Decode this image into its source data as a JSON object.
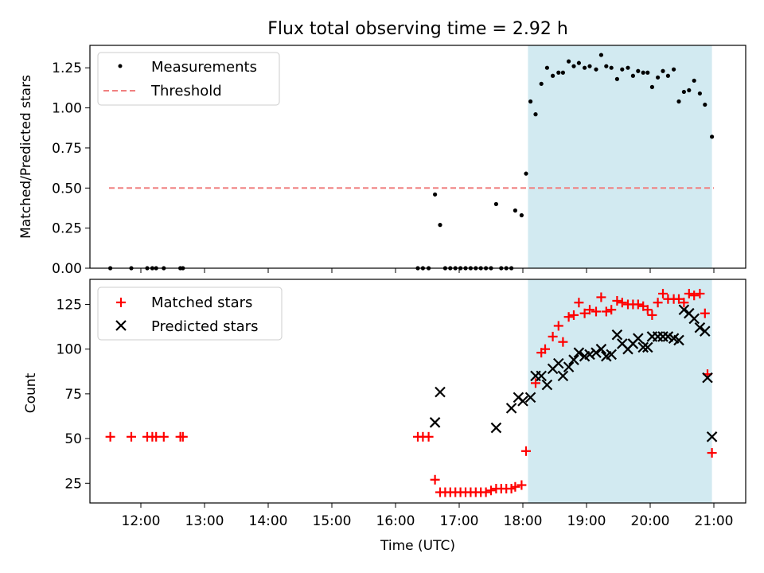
{
  "chart_data": [
    {
      "type": "scatter",
      "title": "Flux total observing time = 2.92 h",
      "xlabel": "",
      "ylabel": "Matched/Predicted stars",
      "xlim": [
        11.2,
        21.5
      ],
      "ylim": [
        0,
        1.39
      ],
      "yticks": [
        0,
        0.25,
        0.5,
        0.75,
        1.0,
        1.25
      ],
      "ytick_labels": [
        "0.00",
        "0.25",
        "0.50",
        "0.75",
        "1.00",
        "1.25"
      ],
      "shaded_interval": [
        18.08,
        20.97
      ],
      "threshold": {
        "name": "Threshold",
        "value": 0.5,
        "x_range": [
          11.5,
          21.0
        ],
        "color": "#f08080"
      },
      "legend": "top-left",
      "series": [
        {
          "name": "Measurements",
          "color": "#000000",
          "x": [
            11.52,
            11.85,
            12.1,
            12.18,
            12.24,
            12.36,
            12.62,
            12.66,
            16.35,
            16.43,
            16.52,
            16.62,
            16.7,
            16.78,
            16.86,
            16.94,
            17.02,
            17.1,
            17.18,
            17.26,
            17.34,
            17.42,
            17.5,
            17.58,
            17.66,
            17.74,
            17.82,
            17.88,
            17.98,
            18.05,
            18.12,
            18.2,
            18.29,
            18.38,
            18.47,
            18.56,
            18.63,
            18.72,
            18.8,
            18.88,
            18.97,
            19.05,
            19.15,
            19.23,
            19.31,
            19.39,
            19.48,
            19.56,
            19.65,
            19.73,
            19.81,
            19.89,
            19.96,
            20.03,
            20.12,
            20.2,
            20.28,
            20.37,
            20.45,
            20.53,
            20.61,
            20.69,
            20.78,
            20.86,
            20.97
          ],
          "y": [
            0.0,
            0.0,
            0.0,
            0.0,
            0.0,
            0.0,
            0.0,
            0.0,
            0.0,
            0.0,
            0.0,
            0.46,
            0.27,
            0.0,
            0.0,
            0.0,
            0.0,
            0.0,
            0.0,
            0.0,
            0.0,
            0.0,
            0.0,
            0.4,
            0.0,
            0.0,
            0.0,
            0.36,
            0.33,
            0.59,
            1.04,
            0.96,
            1.15,
            1.25,
            1.2,
            1.22,
            1.22,
            1.29,
            1.26,
            1.28,
            1.25,
            1.26,
            1.24,
            1.33,
            1.26,
            1.25,
            1.18,
            1.24,
            1.25,
            1.2,
            1.23,
            1.22,
            1.22,
            1.13,
            1.19,
            1.23,
            1.2,
            1.24,
            1.04,
            1.1,
            1.11,
            1.17,
            1.09,
            1.02,
            0.82
          ]
        }
      ]
    },
    {
      "type": "scatter",
      "title": "",
      "xlabel": "Time (UTC)",
      "ylabel": "Count",
      "xlim": [
        11.2,
        21.5
      ],
      "ylim": [
        14,
        139
      ],
      "xticks": [
        12,
        13,
        14,
        15,
        16,
        17,
        18,
        19,
        20,
        21
      ],
      "xtick_labels": [
        "12:00",
        "13:00",
        "14:00",
        "15:00",
        "16:00",
        "17:00",
        "18:00",
        "19:00",
        "20:00",
        "21:00"
      ],
      "yticks": [
        25,
        50,
        75,
        100,
        125
      ],
      "ytick_labels": [
        "25",
        "50",
        "75",
        "100",
        "125"
      ],
      "shaded_interval": [
        18.08,
        20.97
      ],
      "legend": "top-left",
      "series": [
        {
          "name": "Matched stars",
          "marker": "plus",
          "color": "#ff0000",
          "x": [
            11.52,
            11.85,
            12.1,
            12.18,
            12.24,
            12.36,
            12.62,
            12.66,
            16.35,
            16.43,
            16.52,
            16.62,
            16.7,
            16.78,
            16.86,
            16.94,
            17.02,
            17.1,
            17.18,
            17.26,
            17.34,
            17.42,
            17.5,
            17.58,
            17.66,
            17.74,
            17.82,
            17.88,
            17.98,
            18.05,
            18.2,
            18.29,
            18.35,
            18.47,
            18.56,
            18.63,
            18.72,
            18.8,
            18.88,
            18.97,
            19.05,
            19.15,
            19.23,
            19.31,
            19.39,
            19.48,
            19.56,
            19.65,
            19.73,
            19.81,
            19.89,
            19.96,
            20.03,
            20.12,
            20.2,
            20.28,
            20.37,
            20.45,
            20.53,
            20.61,
            20.69,
            20.78,
            20.86,
            20.9,
            20.97
          ],
          "y": [
            51,
            51,
            51,
            51,
            51,
            51,
            51,
            51,
            51,
            51,
            51,
            27,
            20,
            20,
            20,
            20,
            20,
            20,
            20,
            20,
            20,
            20,
            21,
            22,
            22,
            22,
            22,
            23,
            24,
            43,
            81,
            98,
            100,
            107,
            113,
            104,
            118,
            119,
            126,
            120,
            122,
            121,
            129,
            121,
            122,
            127,
            126,
            125,
            125,
            125,
            124,
            122,
            119,
            126,
            131,
            128,
            128,
            128,
            126,
            131,
            130,
            131,
            120,
            86,
            42
          ]
        },
        {
          "name": "Predicted stars",
          "marker": "x",
          "color": "#000000",
          "x": [
            16.62,
            16.7,
            17.58,
            17.82,
            17.93,
            18.0,
            18.12,
            18.2,
            18.29,
            18.38,
            18.47,
            18.56,
            18.63,
            18.72,
            18.8,
            18.88,
            18.97,
            19.05,
            19.15,
            19.23,
            19.31,
            19.39,
            19.48,
            19.56,
            19.65,
            19.73,
            19.81,
            19.89,
            19.96,
            20.03,
            20.12,
            20.2,
            20.28,
            20.37,
            20.45,
            20.53,
            20.61,
            20.69,
            20.78,
            20.86,
            20.9,
            20.97
          ],
          "y": [
            59,
            76,
            56,
            67,
            73,
            71,
            73,
            85,
            85,
            80,
            89,
            92,
            85,
            90,
            94,
            98,
            96,
            97,
            98,
            100,
            96,
            97,
            108,
            103,
            100,
            103,
            106,
            101,
            101,
            107,
            107,
            107,
            107,
            106,
            105,
            122,
            120,
            117,
            112,
            110,
            84,
            51
          ]
        }
      ]
    }
  ]
}
